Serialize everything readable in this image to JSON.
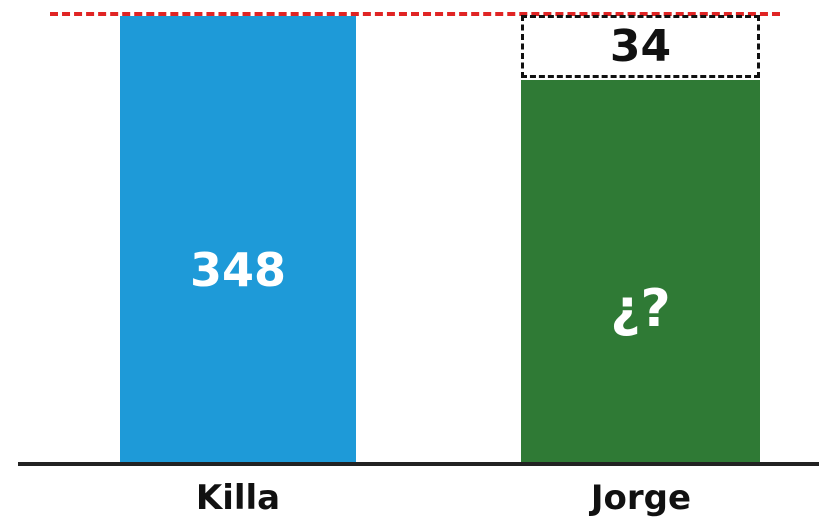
{
  "bars": [
    {
      "category": "Killa",
      "label": "348",
      "color": "#1e9ad8"
    },
    {
      "category": "Jorge",
      "label": "¿?",
      "color": "#2f7a35"
    }
  ],
  "difference": {
    "label": "34"
  },
  "reference_line_color": "#e02424"
}
